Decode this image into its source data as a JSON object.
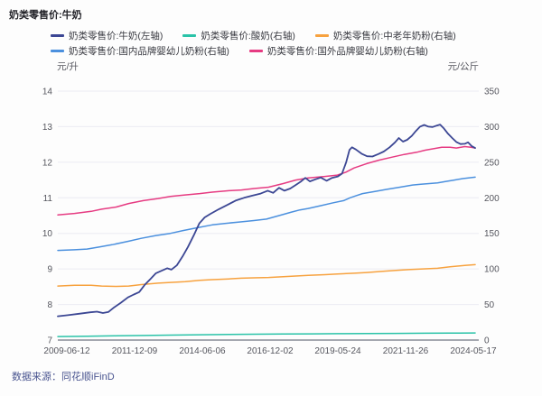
{
  "title": "奶类零售价:牛奶",
  "source": "数据来源：同花顺iFinD",
  "chart_data": {
    "type": "line",
    "title": "奶类零售价:牛奶",
    "grid": true,
    "legend_position": "top",
    "legend_rows": [
      [
        0,
        1,
        2
      ],
      [
        3,
        4
      ]
    ],
    "left_axis": {
      "unit": "元/升",
      "range": [
        7,
        14
      ],
      "ticks": [
        14,
        13,
        12,
        11,
        10,
        9,
        8,
        7
      ]
    },
    "right_axis": {
      "unit": "元/公斤",
      "range": [
        0,
        350
      ],
      "ticks": [
        350,
        300,
        250,
        200,
        150,
        100,
        50,
        0
      ]
    },
    "x_ticks": [
      "2009-06-12",
      "2011-12-09",
      "2014-06-06",
      "2016-12-02",
      "2019-05-24",
      "2021-11-26",
      "2024-05-17"
    ],
    "series": [
      {
        "name": "奶类零售价:牛奶(左轴)",
        "axis": "left",
        "color": "#3c4794",
        "width": 1.8,
        "points": [
          [
            0.0,
            7.67
          ],
          [
            0.024,
            7.7
          ],
          [
            0.051,
            7.74
          ],
          [
            0.078,
            7.78
          ],
          [
            0.094,
            7.8
          ],
          [
            0.108,
            7.76
          ],
          [
            0.121,
            7.79
          ],
          [
            0.135,
            7.92
          ],
          [
            0.151,
            8.05
          ],
          [
            0.168,
            8.2
          ],
          [
            0.182,
            8.28
          ],
          [
            0.195,
            8.35
          ],
          [
            0.208,
            8.55
          ],
          [
            0.222,
            8.72
          ],
          [
            0.235,
            8.88
          ],
          [
            0.249,
            8.95
          ],
          [
            0.262,
            9.02
          ],
          [
            0.272,
            8.98
          ],
          [
            0.285,
            9.1
          ],
          [
            0.299,
            9.35
          ],
          [
            0.312,
            9.62
          ],
          [
            0.326,
            9.95
          ],
          [
            0.339,
            10.28
          ],
          [
            0.352,
            10.45
          ],
          [
            0.366,
            10.55
          ],
          [
            0.386,
            10.68
          ],
          [
            0.406,
            10.8
          ],
          [
            0.426,
            10.92
          ],
          [
            0.446,
            11.0
          ],
          [
            0.466,
            11.06
          ],
          [
            0.486,
            11.12
          ],
          [
            0.503,
            11.2
          ],
          [
            0.516,
            11.14
          ],
          [
            0.53,
            11.28
          ],
          [
            0.543,
            11.2
          ],
          [
            0.557,
            11.26
          ],
          [
            0.57,
            11.36
          ],
          [
            0.583,
            11.46
          ],
          [
            0.593,
            11.56
          ],
          [
            0.604,
            11.46
          ],
          [
            0.617,
            11.52
          ],
          [
            0.63,
            11.57
          ],
          [
            0.644,
            11.48
          ],
          [
            0.657,
            11.56
          ],
          [
            0.671,
            11.6
          ],
          [
            0.681,
            11.68
          ],
          [
            0.691,
            12.0
          ],
          [
            0.699,
            12.35
          ],
          [
            0.705,
            12.42
          ],
          [
            0.714,
            12.36
          ],
          [
            0.728,
            12.24
          ],
          [
            0.741,
            12.17
          ],
          [
            0.754,
            12.16
          ],
          [
            0.768,
            12.23
          ],
          [
            0.781,
            12.3
          ],
          [
            0.795,
            12.42
          ],
          [
            0.808,
            12.56
          ],
          [
            0.817,
            12.68
          ],
          [
            0.827,
            12.58
          ],
          [
            0.837,
            12.63
          ],
          [
            0.848,
            12.74
          ],
          [
            0.858,
            12.88
          ],
          [
            0.868,
            13.0
          ],
          [
            0.878,
            13.05
          ],
          [
            0.888,
            13.0
          ],
          [
            0.898,
            12.99
          ],
          [
            0.908,
            13.03
          ],
          [
            0.916,
            13.06
          ],
          [
            0.925,
            12.95
          ],
          [
            0.935,
            12.8
          ],
          [
            0.945,
            12.68
          ],
          [
            0.955,
            12.57
          ],
          [
            0.965,
            12.51
          ],
          [
            0.975,
            12.52
          ],
          [
            0.983,
            12.56
          ],
          [
            0.992,
            12.45
          ],
          [
            1.0,
            12.4
          ]
        ]
      },
      {
        "name": "奶类零售价:酸奶(右轴)",
        "axis": "right",
        "color": "#2ac3a8",
        "width": 1.5,
        "points": [
          [
            0.0,
            5.0
          ],
          [
            0.07,
            5.5
          ],
          [
            0.14,
            6.0
          ],
          [
            0.21,
            6.5
          ],
          [
            0.27,
            7.0
          ],
          [
            0.34,
            7.5
          ],
          [
            0.41,
            8.0
          ],
          [
            0.47,
            8.3
          ],
          [
            0.54,
            8.6
          ],
          [
            0.61,
            8.8
          ],
          [
            0.67,
            9.0
          ],
          [
            0.74,
            9.2
          ],
          [
            0.81,
            9.4
          ],
          [
            0.88,
            9.6
          ],
          [
            0.94,
            9.8
          ],
          [
            1.0,
            10.0
          ]
        ]
      },
      {
        "name": "奶类零售价:中老年奶粉(右轴)",
        "axis": "right",
        "color": "#f7a23f",
        "width": 1.5,
        "points": [
          [
            0.0,
            76
          ],
          [
            0.04,
            77
          ],
          [
            0.08,
            77
          ],
          [
            0.105,
            76
          ],
          [
            0.14,
            75.5
          ],
          [
            0.17,
            76
          ],
          [
            0.2,
            78
          ],
          [
            0.24,
            80
          ],
          [
            0.27,
            81
          ],
          [
            0.305,
            82
          ],
          [
            0.34,
            84
          ],
          [
            0.37,
            85
          ],
          [
            0.41,
            86
          ],
          [
            0.44,
            87
          ],
          [
            0.47,
            87.5
          ],
          [
            0.505,
            88
          ],
          [
            0.54,
            89
          ],
          [
            0.57,
            90
          ],
          [
            0.6,
            91
          ],
          [
            0.64,
            92
          ],
          [
            0.67,
            93
          ],
          [
            0.71,
            94
          ],
          [
            0.74,
            95
          ],
          [
            0.775,
            96.5
          ],
          [
            0.81,
            98
          ],
          [
            0.84,
            99
          ],
          [
            0.875,
            100
          ],
          [
            0.91,
            101
          ],
          [
            0.94,
            103
          ],
          [
            0.975,
            105
          ],
          [
            1.0,
            106
          ]
        ]
      },
      {
        "name": "奶类零售价:国内品牌婴幼儿奶粉(右轴)",
        "axis": "right",
        "color": "#4b90de",
        "width": 1.5,
        "points": [
          [
            0.0,
            126
          ],
          [
            0.04,
            127
          ],
          [
            0.07,
            128
          ],
          [
            0.1,
            131
          ],
          [
            0.13,
            134
          ],
          [
            0.17,
            139
          ],
          [
            0.2,
            143
          ],
          [
            0.235,
            147
          ],
          [
            0.27,
            150
          ],
          [
            0.3,
            154
          ],
          [
            0.335,
            158
          ],
          [
            0.37,
            162
          ],
          [
            0.4,
            164
          ],
          [
            0.435,
            166
          ],
          [
            0.47,
            168
          ],
          [
            0.5,
            170
          ],
          [
            0.53,
            175
          ],
          [
            0.56,
            180
          ],
          [
            0.58,
            183
          ],
          [
            0.6,
            185
          ],
          [
            0.63,
            189
          ],
          [
            0.66,
            193
          ],
          [
            0.685,
            196
          ],
          [
            0.7,
            200
          ],
          [
            0.715,
            203
          ],
          [
            0.73,
            206
          ],
          [
            0.76,
            209
          ],
          [
            0.79,
            212
          ],
          [
            0.82,
            215
          ],
          [
            0.85,
            218
          ],
          [
            0.87,
            219
          ],
          [
            0.89,
            220
          ],
          [
            0.91,
            221
          ],
          [
            0.93,
            223
          ],
          [
            0.95,
            225
          ],
          [
            0.97,
            227
          ],
          [
            1.0,
            229
          ]
        ]
      },
      {
        "name": "奶类零售价:国外品牌婴幼儿奶粉(右轴)",
        "axis": "right",
        "color": "#e63b82",
        "width": 1.5,
        "points": [
          [
            0.0,
            176
          ],
          [
            0.04,
            178
          ],
          [
            0.08,
            181
          ],
          [
            0.105,
            184
          ],
          [
            0.14,
            187
          ],
          [
            0.17,
            192
          ],
          [
            0.205,
            196
          ],
          [
            0.24,
            199
          ],
          [
            0.27,
            202
          ],
          [
            0.305,
            204
          ],
          [
            0.34,
            206
          ],
          [
            0.37,
            208
          ],
          [
            0.41,
            210
          ],
          [
            0.44,
            211
          ],
          [
            0.47,
            213
          ],
          [
            0.505,
            215
          ],
          [
            0.54,
            220
          ],
          [
            0.57,
            225
          ],
          [
            0.6,
            228
          ],
          [
            0.64,
            230
          ],
          [
            0.67,
            232
          ],
          [
            0.69,
            236
          ],
          [
            0.71,
            242
          ],
          [
            0.74,
            248
          ],
          [
            0.77,
            253
          ],
          [
            0.8,
            257
          ],
          [
            0.83,
            261
          ],
          [
            0.86,
            264
          ],
          [
            0.88,
            267
          ],
          [
            0.9,
            269
          ],
          [
            0.92,
            271
          ],
          [
            0.94,
            271
          ],
          [
            0.955,
            270
          ],
          [
            0.975,
            272
          ],
          [
            0.99,
            271
          ],
          [
            1.0,
            270
          ]
        ]
      }
    ]
  }
}
